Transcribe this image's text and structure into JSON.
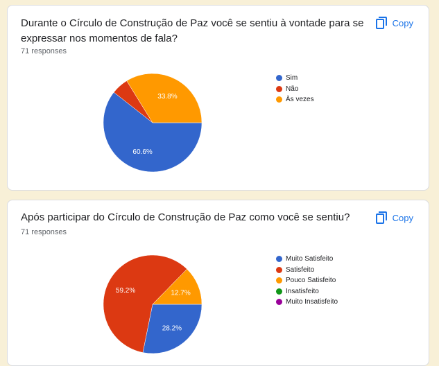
{
  "copy_label": "Copy",
  "colors": {
    "accent": "#1a73e8",
    "page_background": "#f8f0d7",
    "blue": "#3366cc",
    "red": "#dc3912",
    "orange": "#ff9900",
    "green": "#109618",
    "purple": "#990099"
  },
  "icons": {
    "copy": "copy-icon"
  },
  "questions": [
    {
      "title": "Durante o Círculo de Construção de Paz você se sentiu à vontade para se expressar nos momentos de fala?",
      "responses": "71 responses",
      "legend": [
        {
          "label": "Sim",
          "color": "#3366cc"
        },
        {
          "label": "Não",
          "color": "#dc3912"
        },
        {
          "label": "Às vezes",
          "color": "#ff9900"
        }
      ]
    },
    {
      "title": "Após participar do Círculo de Construção de Paz como você se sentiu?",
      "responses": "71 responses",
      "legend": [
        {
          "label": "Muito Satisfeito",
          "color": "#3366cc"
        },
        {
          "label": "Satisfeito",
          "color": "#dc3912"
        },
        {
          "label": "Pouco Satisfeito",
          "color": "#ff9900"
        },
        {
          "label": "Insatisfeito",
          "color": "#109618"
        },
        {
          "label": "Muito Insatisfeito",
          "color": "#990099"
        }
      ]
    }
  ],
  "chart_data": [
    {
      "type": "pie",
      "title": "Durante o Círculo de Construção de Paz você se sentiu à vontade para se expressar nos momentos de fala?",
      "categories": [
        "Sim",
        "Não",
        "Às vezes"
      ],
      "values": [
        60.6,
        5.6,
        33.8
      ],
      "data_labels": [
        "60.6%",
        "",
        "33.8%"
      ],
      "colors": [
        "#3366cc",
        "#dc3912",
        "#ff9900"
      ],
      "legend": "right"
    },
    {
      "type": "pie",
      "title": "Após participar do Círculo de Construção de Paz como você se sentiu?",
      "categories": [
        "Muito Satisfeito",
        "Satisfeito",
        "Pouco Satisfeito",
        "Insatisfeito",
        "Muito Insatisfeito"
      ],
      "values": [
        28.2,
        59.2,
        12.7,
        0,
        0
      ],
      "data_labels": [
        "28.2%",
        "59.2%",
        "12.7%",
        "",
        ""
      ],
      "colors": [
        "#3366cc",
        "#dc3912",
        "#ff9900",
        "#109618",
        "#990099"
      ],
      "legend": "right"
    }
  ]
}
